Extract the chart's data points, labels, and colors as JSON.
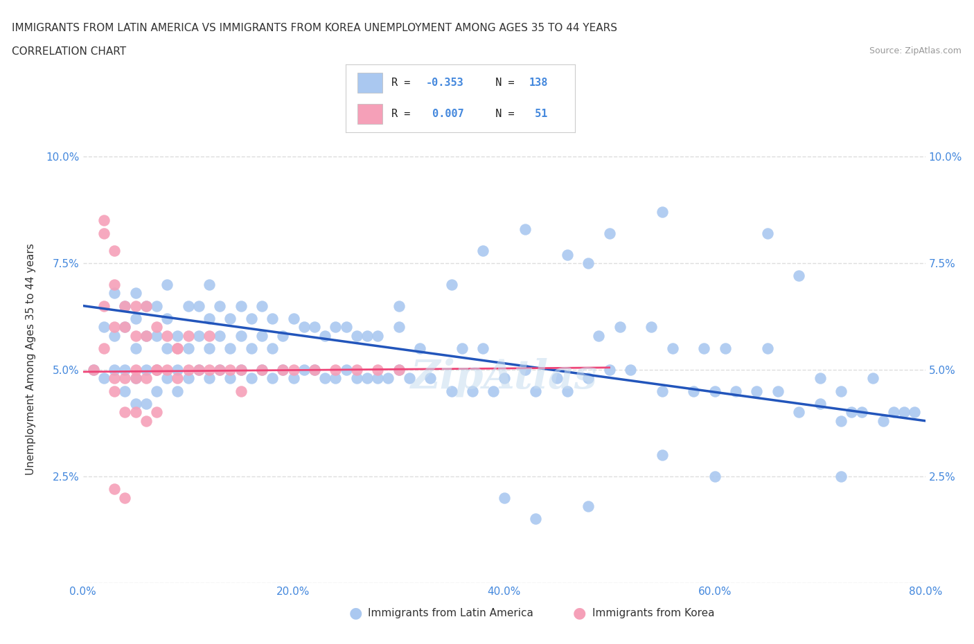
{
  "title_line1": "IMMIGRANTS FROM LATIN AMERICA VS IMMIGRANTS FROM KOREA UNEMPLOYMENT AMONG AGES 35 TO 44 YEARS",
  "title_line2": "CORRELATION CHART",
  "source_text": "Source: ZipAtlas.com",
  "ylabel": "Unemployment Among Ages 35 to 44 years",
  "xlim": [
    0.0,
    0.8
  ],
  "ylim": [
    0.0,
    0.105
  ],
  "xticks": [
    0.0,
    0.1,
    0.2,
    0.3,
    0.4,
    0.5,
    0.6,
    0.7,
    0.8
  ],
  "xticklabels": [
    "0.0%",
    "",
    "20.0%",
    "",
    "40.0%",
    "",
    "60.0%",
    "",
    "80.0%"
  ],
  "yticks": [
    0.0,
    0.025,
    0.05,
    0.075,
    0.1
  ],
  "yticklabels_left": [
    "",
    "2.5%",
    "5.0%",
    "7.5%",
    "10.0%"
  ],
  "yticklabels_right": [
    "",
    "2.5%",
    "5.0%",
    "7.5%",
    "10.0%"
  ],
  "blue_color": "#aac8f0",
  "pink_color": "#f5a0b8",
  "blue_line_color": "#2255bb",
  "pink_line_color": "#ee4477",
  "legend_R1": "-0.353",
  "legend_N1": "138",
  "legend_R2": "0.007",
  "legend_N2": "51",
  "legend_label1": "Immigrants from Latin America",
  "legend_label2": "Immigrants from Korea",
  "watermark": "ZipAtlas",
  "blue_scatter_x": [
    0.01,
    0.02,
    0.02,
    0.03,
    0.03,
    0.03,
    0.04,
    0.04,
    0.04,
    0.04,
    0.05,
    0.05,
    0.05,
    0.05,
    0.05,
    0.06,
    0.06,
    0.06,
    0.06,
    0.07,
    0.07,
    0.07,
    0.07,
    0.08,
    0.08,
    0.08,
    0.08,
    0.09,
    0.09,
    0.09,
    0.1,
    0.1,
    0.1,
    0.11,
    0.11,
    0.11,
    0.12,
    0.12,
    0.12,
    0.12,
    0.13,
    0.13,
    0.13,
    0.14,
    0.14,
    0.14,
    0.15,
    0.15,
    0.15,
    0.16,
    0.16,
    0.16,
    0.17,
    0.17,
    0.17,
    0.18,
    0.18,
    0.18,
    0.19,
    0.19,
    0.2,
    0.2,
    0.21,
    0.21,
    0.22,
    0.22,
    0.23,
    0.23,
    0.24,
    0.24,
    0.25,
    0.25,
    0.26,
    0.26,
    0.27,
    0.27,
    0.28,
    0.28,
    0.29,
    0.3,
    0.3,
    0.31,
    0.32,
    0.33,
    0.35,
    0.36,
    0.37,
    0.38,
    0.39,
    0.4,
    0.42,
    0.43,
    0.45,
    0.46,
    0.48,
    0.49,
    0.5,
    0.51,
    0.52,
    0.54,
    0.55,
    0.56,
    0.58,
    0.59,
    0.6,
    0.61,
    0.62,
    0.64,
    0.65,
    0.66,
    0.68,
    0.7,
    0.7,
    0.72,
    0.72,
    0.73,
    0.74,
    0.75,
    0.76,
    0.77,
    0.78,
    0.79,
    0.55,
    0.5,
    0.46,
    0.42,
    0.38,
    0.65,
    0.68,
    0.48,
    0.72,
    0.6,
    0.55,
    0.48,
    0.43,
    0.4,
    0.35,
    0.3
  ],
  "blue_scatter_y": [
    0.05,
    0.048,
    0.06,
    0.05,
    0.058,
    0.068,
    0.05,
    0.06,
    0.045,
    0.065,
    0.048,
    0.055,
    0.062,
    0.042,
    0.068,
    0.05,
    0.058,
    0.065,
    0.042,
    0.05,
    0.058,
    0.065,
    0.045,
    0.048,
    0.055,
    0.062,
    0.07,
    0.05,
    0.058,
    0.045,
    0.048,
    0.055,
    0.065,
    0.05,
    0.058,
    0.065,
    0.048,
    0.055,
    0.062,
    0.07,
    0.05,
    0.058,
    0.065,
    0.048,
    0.055,
    0.062,
    0.05,
    0.058,
    0.065,
    0.048,
    0.055,
    0.062,
    0.05,
    0.058,
    0.065,
    0.048,
    0.055,
    0.062,
    0.05,
    0.058,
    0.048,
    0.062,
    0.05,
    0.06,
    0.05,
    0.06,
    0.048,
    0.058,
    0.048,
    0.06,
    0.05,
    0.06,
    0.048,
    0.058,
    0.048,
    0.058,
    0.048,
    0.058,
    0.048,
    0.05,
    0.06,
    0.048,
    0.055,
    0.048,
    0.045,
    0.055,
    0.045,
    0.055,
    0.045,
    0.048,
    0.05,
    0.045,
    0.048,
    0.045,
    0.048,
    0.058,
    0.05,
    0.06,
    0.05,
    0.06,
    0.045,
    0.055,
    0.045,
    0.055,
    0.045,
    0.055,
    0.045,
    0.045,
    0.055,
    0.045,
    0.04,
    0.042,
    0.048,
    0.038,
    0.045,
    0.04,
    0.04,
    0.048,
    0.038,
    0.04,
    0.04,
    0.04,
    0.087,
    0.082,
    0.077,
    0.083,
    0.078,
    0.082,
    0.072,
    0.075,
    0.025,
    0.025,
    0.03,
    0.018,
    0.015,
    0.02,
    0.07,
    0.065
  ],
  "pink_scatter_x": [
    0.01,
    0.02,
    0.02,
    0.02,
    0.02,
    0.03,
    0.03,
    0.03,
    0.03,
    0.03,
    0.04,
    0.04,
    0.04,
    0.04,
    0.05,
    0.05,
    0.05,
    0.05,
    0.06,
    0.06,
    0.06,
    0.06,
    0.07,
    0.07,
    0.07,
    0.08,
    0.08,
    0.09,
    0.09,
    0.1,
    0.1,
    0.11,
    0.12,
    0.12,
    0.13,
    0.14,
    0.15,
    0.15,
    0.17,
    0.19,
    0.2,
    0.22,
    0.24,
    0.26,
    0.28,
    0.3,
    0.03,
    0.05,
    0.07,
    0.09,
    0.04
  ],
  "pink_scatter_y": [
    0.05,
    0.082,
    0.065,
    0.085,
    0.055,
    0.048,
    0.06,
    0.07,
    0.078,
    0.045,
    0.048,
    0.06,
    0.04,
    0.065,
    0.048,
    0.058,
    0.04,
    0.065,
    0.048,
    0.058,
    0.038,
    0.065,
    0.05,
    0.06,
    0.04,
    0.05,
    0.058,
    0.048,
    0.055,
    0.05,
    0.058,
    0.05,
    0.05,
    0.058,
    0.05,
    0.05,
    0.05,
    0.045,
    0.05,
    0.05,
    0.05,
    0.05,
    0.05,
    0.05,
    0.05,
    0.05,
    0.022,
    0.05,
    0.05,
    0.055,
    0.02
  ],
  "blue_line_x": [
    0.0,
    0.8
  ],
  "blue_line_y": [
    0.065,
    0.038
  ],
  "pink_line_x": [
    0.0,
    0.5
  ],
  "pink_line_y": [
    0.0495,
    0.0505
  ],
  "grid_color": "#dddddd",
  "background_color": "#ffffff",
  "tick_color": "#4488dd",
  "text_color": "#333333",
  "source_color": "#999999"
}
